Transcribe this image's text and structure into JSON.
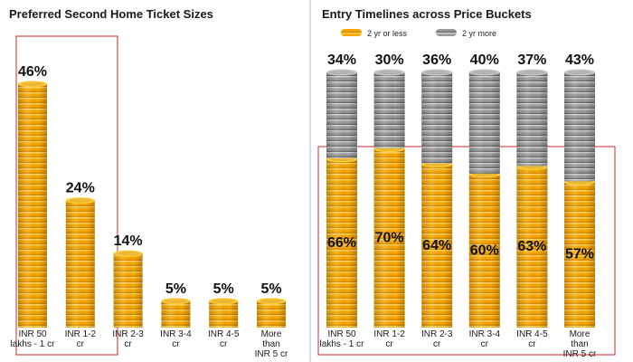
{
  "colors": {
    "gold": "#f7a600",
    "gold_light": "#ffc93a",
    "gold_dark": "#d98c00",
    "grey": "#9a9a9a",
    "grey_light": "#c4c4c4",
    "grey_dark": "#6e6e6e",
    "highlight_box": "#d6232a",
    "divider": "#bdbdbd"
  },
  "chart_data": [
    {
      "type": "bar",
      "title": "Preferred Second Home Ticket Sizes",
      "categories": [
        [
          "INR 50",
          "lakhs - 1 cr"
        ],
        [
          "INR 1-2",
          "cr"
        ],
        [
          "INR 2-3",
          "cr"
        ],
        [
          "INR 3-4",
          "cr"
        ],
        [
          "INR 4-5",
          "cr"
        ],
        [
          "More",
          "than",
          "INR 5 cr"
        ]
      ],
      "values": [
        46,
        24,
        14,
        5,
        5,
        5
      ],
      "value_labels": [
        "46%",
        "24%",
        "14%",
        "5%",
        "5%",
        "5%"
      ],
      "unit": "%",
      "highlighted_categories": [
        0,
        1
      ]
    },
    {
      "type": "bar",
      "stacked": true,
      "title": "Entry Timelines across Price Buckets",
      "categories": [
        [
          "INR 50",
          "lakhs - 1 cr"
        ],
        [
          "INR 1-2",
          "cr"
        ],
        [
          "INR 2-3",
          "cr"
        ],
        [
          "INR 3-4",
          "cr"
        ],
        [
          "INR 4-5",
          "cr"
        ],
        [
          "More",
          "than",
          "INR 5 cr"
        ]
      ],
      "series": [
        {
          "name": "2 yr or less",
          "values": [
            66,
            70,
            64,
            60,
            63,
            57
          ],
          "value_labels": [
            "66%",
            "70%",
            "64%",
            "60%",
            "63%",
            "57%"
          ]
        },
        {
          "name": "2 yr more",
          "values": [
            34,
            30,
            36,
            40,
            37,
            43
          ],
          "value_labels": [
            "34%",
            "30%",
            "36%",
            "40%",
            "37%",
            "43%"
          ]
        }
      ],
      "unit": "%",
      "legend_position": "top"
    }
  ]
}
